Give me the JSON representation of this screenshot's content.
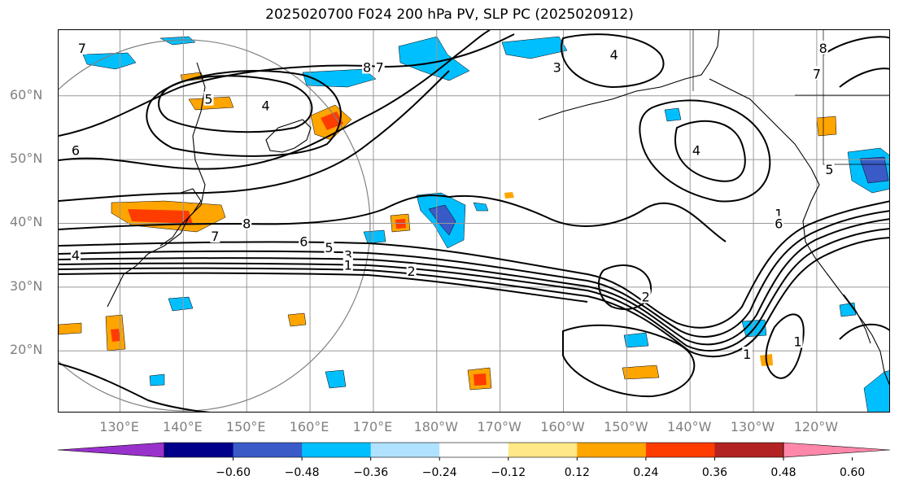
{
  "title": "2025020700 F024 200 hPa PV, SLP PC (2025020912)",
  "lat_labels": [
    {
      "text": "60°N",
      "lat": 60
    },
    {
      "text": "50°N",
      "lat": 50
    },
    {
      "text": "40°N",
      "lat": 40
    },
    {
      "text": "30°N",
      "lat": 30
    },
    {
      "text": "20°N",
      "lat": 20
    }
  ],
  "lon_labels": [
    {
      "text": "130°E",
      "lon": 130
    },
    {
      "text": "140°E",
      "lon": 140
    },
    {
      "text": "150°E",
      "lon": 150
    },
    {
      "text": "160°E",
      "lon": 160
    },
    {
      "text": "170°E",
      "lon": 170
    },
    {
      "text": "180°W",
      "lon": 180
    },
    {
      "text": "170°W",
      "lon": 190
    },
    {
      "text": "160°W",
      "lon": 200
    },
    {
      "text": "150°W",
      "lon": 210
    },
    {
      "text": "140°W",
      "lon": 220
    },
    {
      "text": "130°W",
      "lon": 230
    },
    {
      "text": "120°W",
      "lon": 240
    }
  ],
  "colorbar": {
    "colors": [
      "#9932cc",
      "#00008b",
      "#3a5bc7",
      "#00bfff",
      "#b0e2ff",
      "#ffffff",
      "#ffe887",
      "#ffa500",
      "#ff3c00",
      "#b22222",
      "#ff88aa"
    ],
    "tick_labels": [
      "−0.60",
      "−0.48",
      "−0.36",
      "−0.24",
      "−0.12",
      "0.12",
      "0.24",
      "0.36",
      "0.48",
      "0.60"
    ]
  },
  "contour_labels": [
    {
      "text": "7",
      "lon": 124,
      "lat": 67.5
    },
    {
      "text": "8",
      "lon": 169,
      "lat": 64.5
    },
    {
      "text": "7",
      "lon": 171,
      "lat": 64.5
    },
    {
      "text": "3",
      "lon": 199,
      "lat": 64.5
    },
    {
      "text": "4",
      "lon": 208,
      "lat": 66.5
    },
    {
      "text": "8",
      "lon": 241,
      "lat": 67.5
    },
    {
      "text": "7",
      "lon": 240,
      "lat": 63.5
    },
    {
      "text": "5",
      "lon": 144,
      "lat": 59.5
    },
    {
      "text": "4",
      "lon": 153,
      "lat": 58.5
    },
    {
      "text": "6",
      "lon": 123,
      "lat": 51.5
    },
    {
      "text": "4",
      "lon": 221,
      "lat": 51.5
    },
    {
      "text": "5",
      "lon": 242,
      "lat": 48.5
    },
    {
      "text": "8",
      "lon": 150,
      "lat": 40
    },
    {
      "text": "7",
      "lon": 145,
      "lat": 38
    },
    {
      "text": "6",
      "lon": 159,
      "lat": 37.2
    },
    {
      "text": "5",
      "lon": 163,
      "lat": 36.2
    },
    {
      "text": "4",
      "lon": 123,
      "lat": 35
    },
    {
      "text": "3",
      "lon": 166,
      "lat": 35
    },
    {
      "text": "1",
      "lon": 166,
      "lat": 33.5
    },
    {
      "text": "2",
      "lon": 176,
      "lat": 32.5
    },
    {
      "text": "2",
      "lon": 213,
      "lat": 28.5
    },
    {
      "text": "1",
      "lon": 234,
      "lat": 41.5
    },
    {
      "text": "6",
      "lon": 234,
      "lat": 40
    },
    {
      "text": "1",
      "lon": 229,
      "lat": 19.5
    },
    {
      "text": "1",
      "lon": 237,
      "lat": 21.5
    }
  ]
}
